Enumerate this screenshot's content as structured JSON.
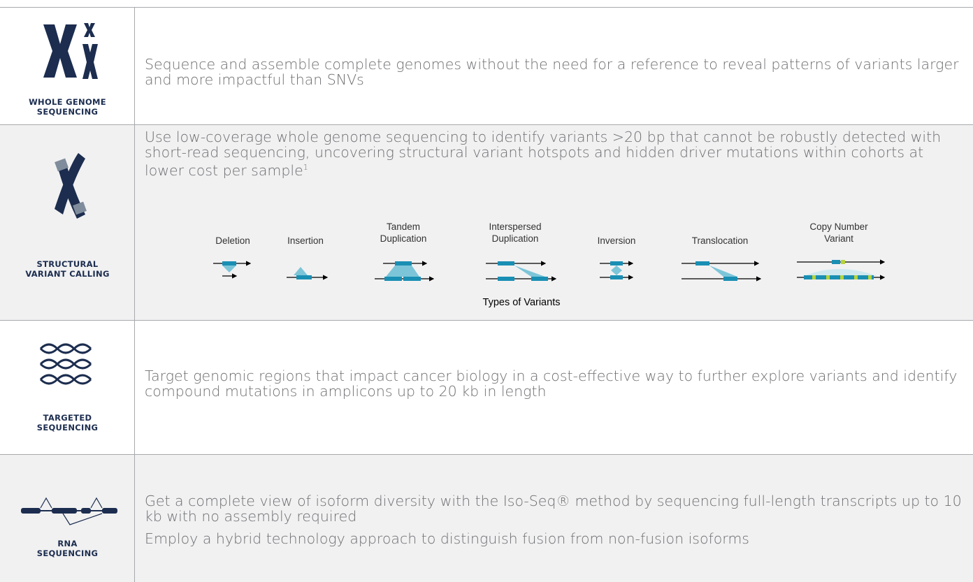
{
  "rows": [
    {
      "label": [
        "WHOLE GENOME",
        "SEQUENCING"
      ],
      "paragraphs": [
        "Sequence and assemble complete genomes without the need for a reference to reveal patterns of variants larger and more impactful than SNVs"
      ]
    },
    {
      "label": [
        "STRUCTURAL",
        "VARIANT CALLING"
      ],
      "paragraphs": [
        "Use low-coverage whole genome sequencing to identify variants >20 bp that cannot be robustly detected with short-read sequencing, uncovering structural variant hotspots and hidden driver mutations within cohorts at lower cost per sample"
      ],
      "footnote": "1",
      "variants": [
        [
          "Deletion"
        ],
        [
          "Insertion"
        ],
        [
          "Tandem",
          "Duplication"
        ],
        [
          "Interspersed",
          "Duplication"
        ],
        [
          "Inversion"
        ],
        [
          "Translocation"
        ],
        [
          "Copy Number",
          "Variant"
        ]
      ],
      "caption": "Types of Variants"
    },
    {
      "label": [
        "TARGETED",
        "SEQUENCING"
      ],
      "paragraphs": [
        "Target genomic regions that impact cancer biology in a cost-effective way to further explore variants and identify compound mutations in amplicons up to 20 kb in length"
      ]
    },
    {
      "label": [
        "RNA",
        "SEQUENCING"
      ],
      "paragraphs": [
        "Get a complete view of isoform diversity with the Iso-Seq® method by sequencing full-length transcripts up to 10 kb with no assembly required",
        "Employ a hybrid technology approach to distinguish fusion from non-fusion isoforms"
      ]
    }
  ]
}
